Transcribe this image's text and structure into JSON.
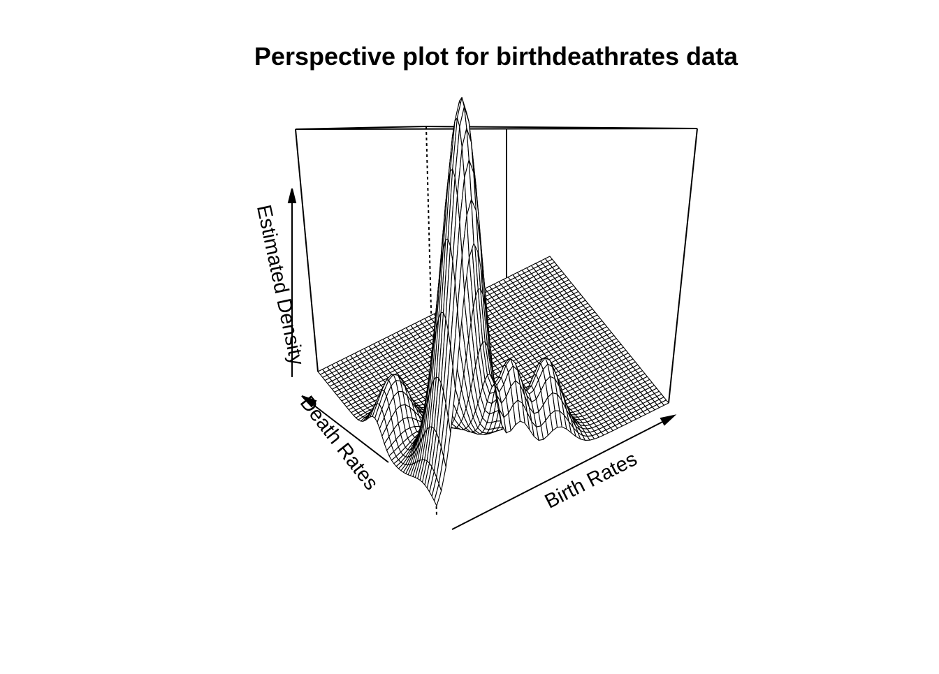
{
  "chart_data": {
    "type": "surface",
    "title": "Perspective plot for birthdeathrates data",
    "xlabel": "Birth Rates",
    "ylabel": "Death Rates",
    "zlabel": "Estimated Density",
    "axis_ticks": false,
    "grid_size": [
      51,
      51
    ],
    "style": "wireframe",
    "peaks": [
      {
        "x": 0.16,
        "y": 0.1,
        "height": 1.0,
        "sx": 0.065,
        "sy": 0.11
      },
      {
        "x": 0.36,
        "y": 0.08,
        "height": 0.26,
        "sx": 0.05,
        "sy": 0.07
      },
      {
        "x": 0.52,
        "y": 0.1,
        "height": 0.22,
        "sx": 0.06,
        "sy": 0.07
      },
      {
        "x": 0.08,
        "y": 0.52,
        "height": 0.15,
        "sx": 0.06,
        "sy": 0.06
      }
    ]
  }
}
